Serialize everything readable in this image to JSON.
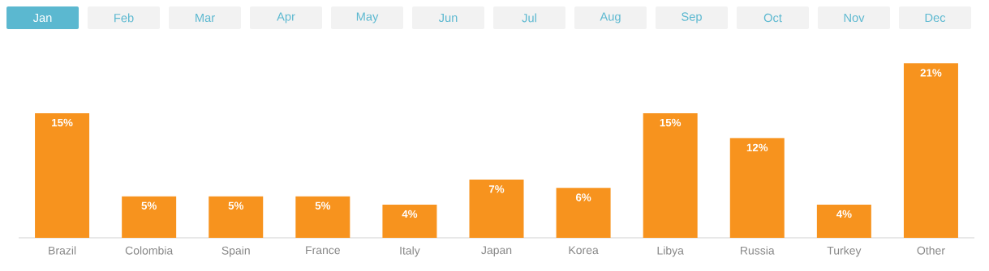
{
  "chart_data": {
    "type": "bar",
    "annotations": [
      "Jan",
      "Feb",
      "Mar",
      "Apr",
      "May",
      "Jun",
      "Jul",
      "Aug",
      "Sep",
      "Oct",
      "Nov",
      "Dec"
    ],
    "categories": [
      "Brazil",
      "Colombia",
      "Spain",
      "France",
      "Italy",
      "Japan",
      "Korea",
      "Libya",
      "Russia",
      "Turkey",
      "Other"
    ],
    "values": [
      15,
      5,
      5,
      5,
      4,
      7,
      6,
      15,
      12,
      4,
      21
    ],
    "value_labels": [
      "15%",
      "5%",
      "5%",
      "5%",
      "4%",
      "7%",
      "6%",
      "15%",
      "12%",
      "4%",
      "21%"
    ],
    "color": "#f7931e"
  }
}
